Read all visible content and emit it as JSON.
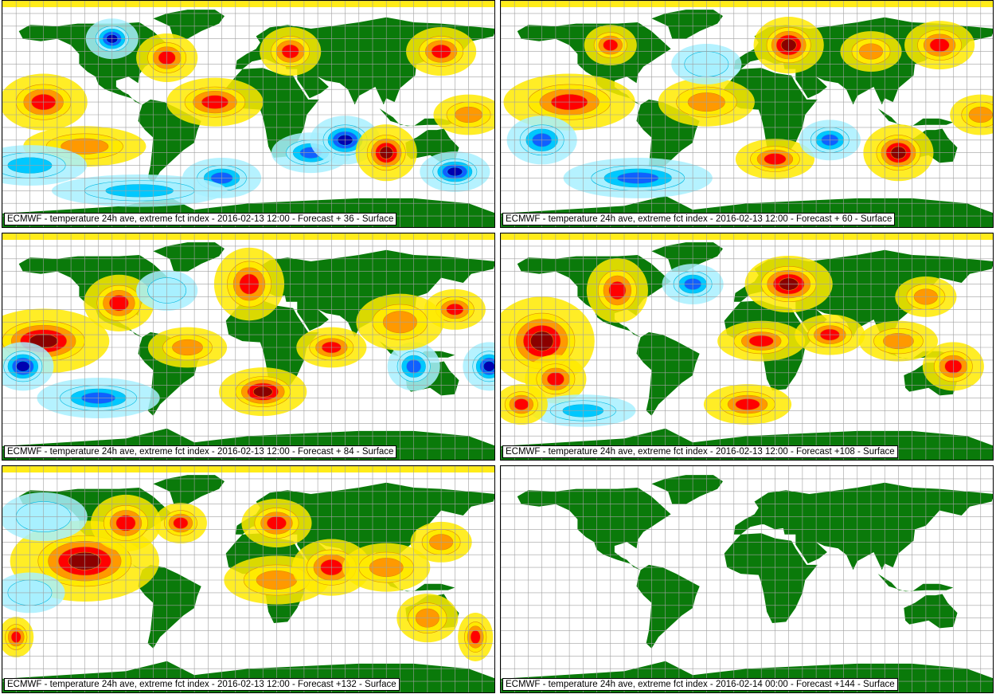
{
  "colors": {
    "land": "#0a7a0a",
    "grid": "#a0a0a0",
    "warm_light": "#ffea00",
    "warm_mid": "#ff9900",
    "warm_strong": "#ff0000",
    "warm_extreme": "#8b0000",
    "cold_light": "#a8f0ff",
    "cold_mid": "#00c8ff",
    "cold_strong": "#1060ff",
    "cold_extreme": "#0000b0",
    "contour_warm": "#e08a00",
    "contour_cold": "#00b8e0"
  },
  "panels": [
    {
      "caption": "ECMWF - temperature 24h ave, extreme fct index - 2016-02-13 12:00 - Forecast + 36 - Surface",
      "has_data": true,
      "anomalies": [
        {
          "lon": -150,
          "lat": 10,
          "rx": 20,
          "ry": 14,
          "level": 3
        },
        {
          "lon": -120,
          "lat": -25,
          "rx": 28,
          "ry": 10,
          "level": 2
        },
        {
          "lon": -100,
          "lat": 60,
          "rx": 12,
          "ry": 10,
          "level": -4
        },
        {
          "lon": -60,
          "lat": 45,
          "rx": 14,
          "ry": 12,
          "level": 3
        },
        {
          "lon": -25,
          "lat": 10,
          "rx": 22,
          "ry": 12,
          "level": 3
        },
        {
          "lon": -20,
          "lat": -50,
          "rx": 18,
          "ry": 10,
          "level": -3
        },
        {
          "lon": 30,
          "lat": 50,
          "rx": 14,
          "ry": 12,
          "level": 3
        },
        {
          "lon": 45,
          "lat": -30,
          "rx": 18,
          "ry": 10,
          "level": -3
        },
        {
          "lon": 70,
          "lat": -20,
          "rx": 16,
          "ry": 12,
          "level": -4
        },
        {
          "lon": 100,
          "lat": -30,
          "rx": 14,
          "ry": 14,
          "level": 4
        },
        {
          "lon": 140,
          "lat": 50,
          "rx": 16,
          "ry": 12,
          "level": 3
        },
        {
          "lon": 150,
          "lat": -45,
          "rx": 16,
          "ry": 10,
          "level": -4
        },
        {
          "lon": -160,
          "lat": -40,
          "rx": 26,
          "ry": 10,
          "level": -2
        },
        {
          "lon": 160,
          "lat": 0,
          "rx": 16,
          "ry": 10,
          "level": 2
        },
        {
          "lon": -80,
          "lat": -60,
          "rx": 40,
          "ry": 8,
          "level": -2
        }
      ]
    },
    {
      "caption": "ECMWF - temperature 24h ave, extreme fct index - 2016-02-13 12:00 - Forecast + 60 - Surface",
      "has_data": true,
      "anomalies": [
        {
          "lon": -130,
          "lat": 10,
          "rx": 30,
          "ry": 14,
          "level": 3
        },
        {
          "lon": -100,
          "lat": 55,
          "rx": 12,
          "ry": 10,
          "level": 3
        },
        {
          "lon": -30,
          "lat": 10,
          "rx": 22,
          "ry": 12,
          "level": 2
        },
        {
          "lon": 30,
          "lat": 55,
          "rx": 16,
          "ry": 14,
          "level": 4
        },
        {
          "lon": 90,
          "lat": 50,
          "rx": 14,
          "ry": 10,
          "level": 2
        },
        {
          "lon": 140,
          "lat": 55,
          "rx": 16,
          "ry": 12,
          "level": 3
        },
        {
          "lon": 110,
          "lat": -30,
          "rx": 16,
          "ry": 14,
          "level": 4
        },
        {
          "lon": 20,
          "lat": -35,
          "rx": 18,
          "ry": 10,
          "level": 3
        },
        {
          "lon": -150,
          "lat": -20,
          "rx": 16,
          "ry": 12,
          "level": -3
        },
        {
          "lon": -80,
          "lat": -50,
          "rx": 34,
          "ry": 10,
          "level": -3
        },
        {
          "lon": 60,
          "lat": -20,
          "rx": 14,
          "ry": 10,
          "level": -3
        },
        {
          "lon": -30,
          "lat": 40,
          "rx": 16,
          "ry": 10,
          "level": -1
        },
        {
          "lon": 170,
          "lat": 0,
          "rx": 14,
          "ry": 10,
          "level": 2
        }
      ]
    },
    {
      "caption": "ECMWF - temperature 24h ave, extreme fct index - 2016-02-13 12:00 - Forecast + 84 - Surface",
      "has_data": true,
      "anomalies": [
        {
          "lon": -150,
          "lat": 5,
          "rx": 30,
          "ry": 16,
          "level": 4
        },
        {
          "lon": -165,
          "lat": -15,
          "rx": 14,
          "ry": 12,
          "level": -4
        },
        {
          "lon": -95,
          "lat": 35,
          "rx": 16,
          "ry": 14,
          "level": 3
        },
        {
          "lon": -110,
          "lat": -40,
          "rx": 28,
          "ry": 10,
          "level": -3
        },
        {
          "lon": 0,
          "lat": 50,
          "rx": 16,
          "ry": 18,
          "level": 3
        },
        {
          "lon": 10,
          "lat": -35,
          "rx": 20,
          "ry": 12,
          "level": 4
        },
        {
          "lon": 60,
          "lat": 0,
          "rx": 16,
          "ry": 10,
          "level": 3
        },
        {
          "lon": 120,
          "lat": -15,
          "rx": 12,
          "ry": 12,
          "level": -3
        },
        {
          "lon": 150,
          "lat": 30,
          "rx": 14,
          "ry": 10,
          "level": 3
        },
        {
          "lon": 175,
          "lat": -15,
          "rx": 12,
          "ry": 12,
          "level": -4
        },
        {
          "lon": -60,
          "lat": 45,
          "rx": 14,
          "ry": 10,
          "level": -1
        },
        {
          "lon": -45,
          "lat": 0,
          "rx": 18,
          "ry": 10,
          "level": 2
        },
        {
          "lon": 110,
          "lat": 20,
          "rx": 20,
          "ry": 14,
          "level": 2
        }
      ]
    },
    {
      "caption": "ECMWF - temperature 24h ave, extreme fct index - 2016-02-13 12:00 - Forecast +108 - Surface",
      "has_data": true,
      "anomalies": [
        {
          "lon": -150,
          "lat": 5,
          "rx": 24,
          "ry": 22,
          "level": 4
        },
        {
          "lon": -140,
          "lat": -25,
          "rx": 14,
          "ry": 12,
          "level": 3
        },
        {
          "lon": -95,
          "lat": 45,
          "rx": 14,
          "ry": 16,
          "level": 3
        },
        {
          "lon": -40,
          "lat": 50,
          "rx": 14,
          "ry": 10,
          "level": -3
        },
        {
          "lon": 30,
          "lat": 50,
          "rx": 20,
          "ry": 14,
          "level": 4
        },
        {
          "lon": 10,
          "lat": 5,
          "rx": 20,
          "ry": 10,
          "level": 3
        },
        {
          "lon": 60,
          "lat": 10,
          "rx": 16,
          "ry": 10,
          "level": 3
        },
        {
          "lon": 0,
          "lat": -45,
          "rx": 20,
          "ry": 10,
          "level": 3
        },
        {
          "lon": 130,
          "lat": 40,
          "rx": 14,
          "ry": 10,
          "level": 2
        },
        {
          "lon": 150,
          "lat": -15,
          "rx": 14,
          "ry": 12,
          "level": 3
        },
        {
          "lon": -120,
          "lat": -50,
          "rx": 24,
          "ry": 8,
          "level": -2
        },
        {
          "lon": -165,
          "lat": -45,
          "rx": 12,
          "ry": 10,
          "level": 3
        },
        {
          "lon": 110,
          "lat": 5,
          "rx": 18,
          "ry": 10,
          "level": 2
        }
      ]
    },
    {
      "caption": "ECMWF - temperature 24h ave, extreme fct index - 2016-02-13 12:00 - Forecast +132 - Surface",
      "has_data": true,
      "anomalies": [
        {
          "lon": -120,
          "lat": 15,
          "rx": 34,
          "ry": 20,
          "level": 4
        },
        {
          "lon": -90,
          "lat": 45,
          "rx": 16,
          "ry": 14,
          "level": 3
        },
        {
          "lon": -50,
          "lat": 45,
          "rx": 12,
          "ry": 10,
          "level": 3
        },
        {
          "lon": -150,
          "lat": 50,
          "rx": 20,
          "ry": 12,
          "level": -1
        },
        {
          "lon": 20,
          "lat": 45,
          "rx": 16,
          "ry": 12,
          "level": 3
        },
        {
          "lon": 20,
          "lat": 0,
          "rx": 24,
          "ry": 12,
          "level": 2
        },
        {
          "lon": 60,
          "lat": 10,
          "rx": 18,
          "ry": 14,
          "level": 3
        },
        {
          "lon": 100,
          "lat": 10,
          "rx": 20,
          "ry": 12,
          "level": 2
        },
        {
          "lon": 140,
          "lat": 30,
          "rx": 14,
          "ry": 10,
          "level": 2
        },
        {
          "lon": 130,
          "lat": -30,
          "rx": 14,
          "ry": 12,
          "level": 2
        },
        {
          "lon": -170,
          "lat": -45,
          "rx": 8,
          "ry": 10,
          "level": 3
        },
        {
          "lon": 165,
          "lat": -45,
          "rx": 8,
          "ry": 12,
          "level": 3
        },
        {
          "lon": -160,
          "lat": -10,
          "rx": 16,
          "ry": 10,
          "level": -1
        }
      ]
    },
    {
      "caption": "ECMWF - temperature 24h ave, extreme fct index - 2016-02-14 00:00 - Forecast +144 - Surface",
      "has_data": false,
      "anomalies": []
    }
  ]
}
